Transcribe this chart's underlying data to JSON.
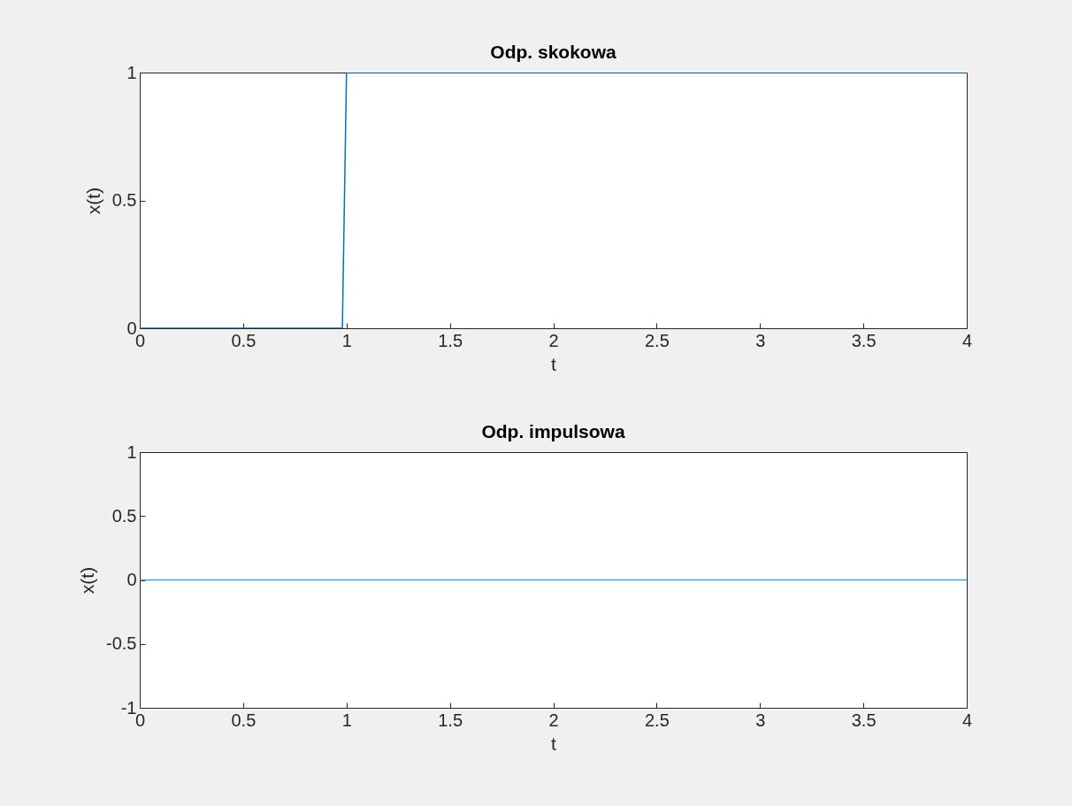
{
  "chart_data": [
    {
      "type": "line",
      "title": "Odp. skokowa",
      "xlabel": "t",
      "ylabel": "x(t)",
      "xlim": [
        0,
        4
      ],
      "ylim": [
        0,
        1
      ],
      "xticks": [
        0,
        0.5,
        1,
        1.5,
        2,
        2.5,
        3,
        3.5,
        4
      ],
      "yticks": [
        0,
        0.5,
        1
      ],
      "grid": false,
      "series": [
        {
          "color": "#0072bd",
          "x": [
            0,
            0.98,
            1,
            4
          ],
          "values": [
            0,
            0,
            1,
            1
          ]
        }
      ]
    },
    {
      "type": "line",
      "title": "Odp. impulsowa",
      "xlabel": "t",
      "ylabel": "x(t)",
      "xlim": [
        0,
        4
      ],
      "ylim": [
        -1,
        1
      ],
      "xticks": [
        0,
        0.5,
        1,
        1.5,
        2,
        2.5,
        3,
        3.5,
        4
      ],
      "yticks": [
        -1,
        -0.5,
        0,
        0.5,
        1
      ],
      "grid": false,
      "series": [
        {
          "color": "#4d9fd6",
          "x": [
            0,
            4
          ],
          "values": [
            0,
            0
          ]
        }
      ]
    }
  ]
}
